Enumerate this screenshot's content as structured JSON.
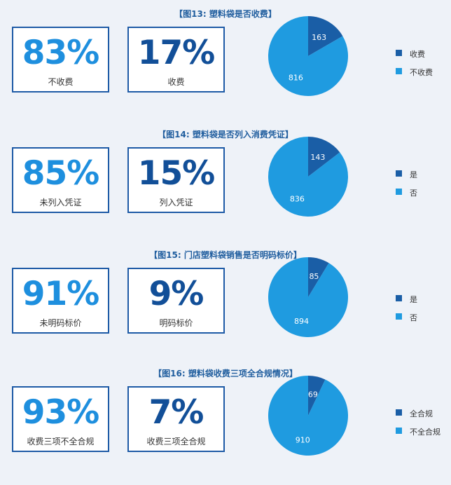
{
  "colors": {
    "dark": "#1a5ea6",
    "light": "#1f9be0"
  },
  "chart_data": [
    {
      "type": "pie",
      "title": "【图13: 塑料袋是否收费】",
      "big_cards": [
        {
          "percent": "83%",
          "label": "不收费"
        },
        {
          "percent": "17%",
          "label": "收费"
        }
      ],
      "slices": [
        {
          "label": "收费",
          "value": 163
        },
        {
          "label": "不收费",
          "value": 816
        }
      ]
    },
    {
      "type": "pie",
      "title": "【图14: 塑料袋是否列入消费凭证】",
      "big_cards": [
        {
          "percent": "85%",
          "label": "未列入凭证"
        },
        {
          "percent": "15%",
          "label": "列入凭证"
        }
      ],
      "slices": [
        {
          "label": "是",
          "value": 143
        },
        {
          "label": "否",
          "value": 836
        }
      ]
    },
    {
      "type": "pie",
      "title": "【图15: 门店塑料袋销售是否明码标价】",
      "big_cards": [
        {
          "percent": "91%",
          "label": "未明码标价"
        },
        {
          "percent": "9%",
          "label": "明码标价"
        }
      ],
      "slices": [
        {
          "label": "是",
          "value": 85
        },
        {
          "label": "否",
          "value": 894
        }
      ]
    },
    {
      "type": "pie",
      "title": "【图16: 塑料袋收费三项全合规情况】",
      "big_cards": [
        {
          "percent": "93%",
          "label": "收费三项不全合规"
        },
        {
          "percent": "7%",
          "label": "收费三项全合规"
        }
      ],
      "slices": [
        {
          "label": "全合规",
          "value": 69
        },
        {
          "label": "不全合规",
          "value": 910
        }
      ]
    }
  ]
}
